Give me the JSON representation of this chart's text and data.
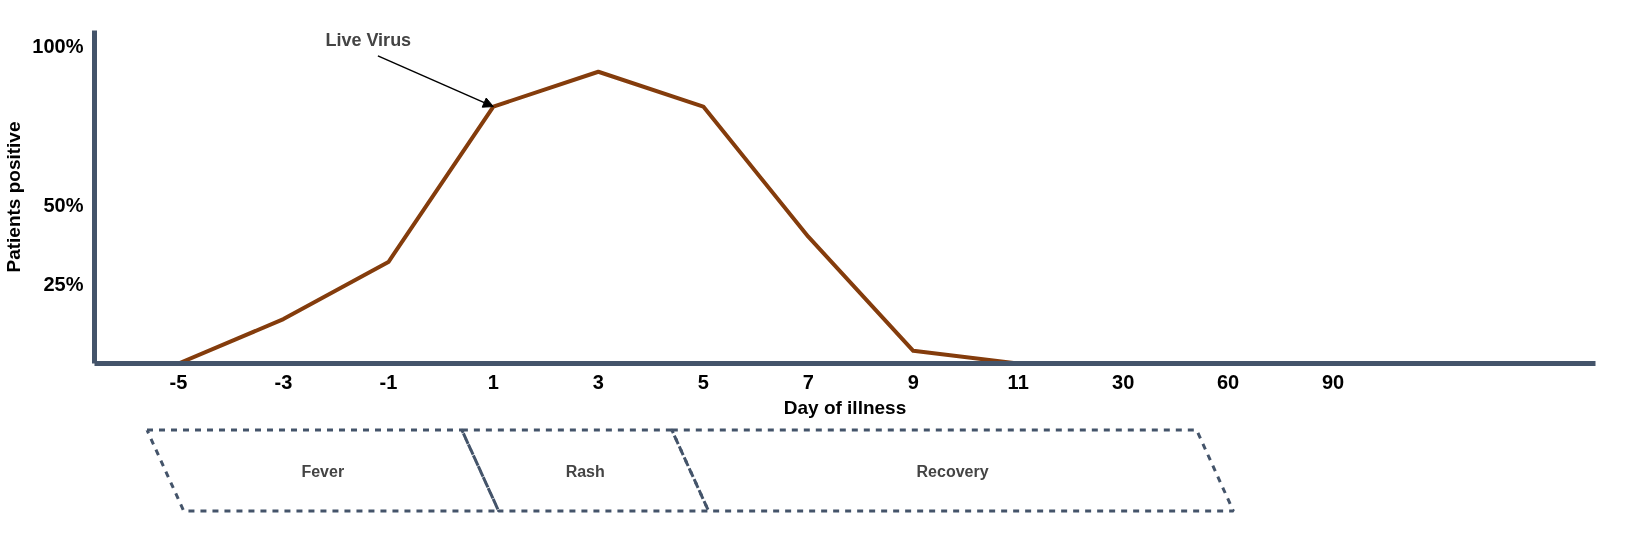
{
  "chart_data": {
    "type": "line",
    "xlabel": "Day of illness",
    "ylabel": "Patients positive",
    "categories": [
      "-5",
      "-3",
      "-1",
      "1",
      "3",
      "5",
      "7",
      "9",
      "11",
      "30",
      "60",
      "90"
    ],
    "series": [
      {
        "color": "#843c0c",
        "values": [
          0,
          14,
          32,
          81,
          92,
          81,
          40,
          4,
          0,
          null,
          null,
          null
        ]
      }
    ],
    "ylim": [
      0,
      105
    ],
    "yticks": [
      {
        "value": 25,
        "label": "25%"
      },
      {
        "value": 50,
        "label": "50%"
      },
      {
        "value": 100,
        "label": "100%"
      }
    ],
    "grid": false,
    "marker": "none",
    "line_style": "solid",
    "annotations": [
      {
        "text": "Live Virus",
        "x": "1",
        "y": 81
      },
      "Fever",
      "Rash",
      "Recovery"
    ]
  }
}
